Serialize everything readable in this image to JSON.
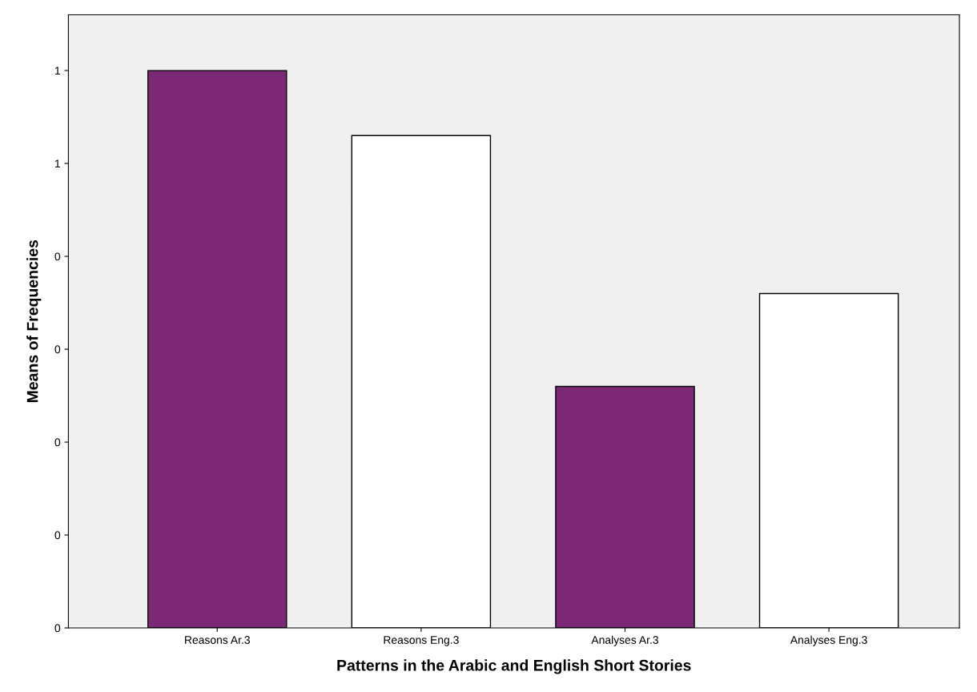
{
  "chart_data": {
    "type": "bar",
    "xlabel": "Patterns in the Arabic and English Short Stories",
    "ylabel": "Means of Frequencies",
    "categories": [
      "Reasons Ar.3",
      "Reasons Eng.3",
      "Analyses Ar.3",
      "Analyses Eng.3"
    ],
    "values": [
      0.6,
      0.53,
      0.26,
      0.36
    ],
    "colors": [
      "#7b2877",
      "#ffffff",
      "#7b2877",
      "#ffffff"
    ],
    "ylim": [
      0,
      0.66
    ],
    "yticks": [
      {
        "value": 0,
        "label": "0"
      },
      {
        "value": 0.1,
        "label": "0"
      },
      {
        "value": 0.2,
        "label": "0"
      },
      {
        "value": 0.3,
        "label": "0"
      },
      {
        "value": 0.4,
        "label": "0"
      },
      {
        "value": 0.5,
        "label": "1"
      },
      {
        "value": 0.6,
        "label": "1"
      }
    ],
    "grid": false,
    "legend": false
  }
}
